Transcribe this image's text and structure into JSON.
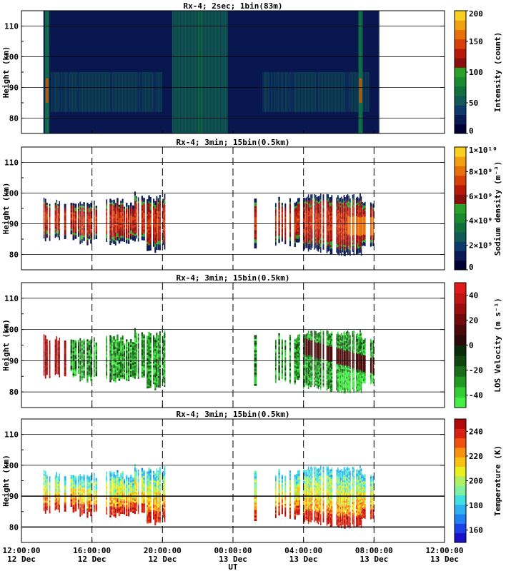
{
  "chart_data": [
    {
      "type": "heatmap",
      "title": "Rx-4;  2sec; 1bin(83m)",
      "ylabel": "Height (km)",
      "ylim": [
        75,
        115
      ],
      "yticks": [
        80,
        90,
        100,
        110
      ],
      "xlim_hours": [
        12,
        36
      ],
      "data_coverage_hours": [
        13.25,
        32.25
      ],
      "colorbar": {
        "label": "Intensity (count)",
        "range": [
          0,
          200
        ],
        "ticks": [
          "0",
          "50",
          "100",
          "150",
          "200"
        ],
        "colors": [
          "#000033",
          "#0a1a55",
          "#0e3a6b",
          "#115a55",
          "#11703c",
          "#1c8a2e",
          "#2aa02a",
          "#8a1010",
          "#b81a0a",
          "#d8400a",
          "#e8700a",
          "#f0a010",
          "#f8d020"
        ]
      },
      "grid": "horizontal"
    },
    {
      "type": "heatmap",
      "title": "Rx-4; 3min; 15bin(0.5km)",
      "ylabel": "Height (km)",
      "ylim": [
        75,
        115
      ],
      "yticks": [
        80,
        90,
        100,
        110
      ],
      "colorbar": {
        "label": "Sodium density (m⁻³)",
        "range": [
          0,
          10000000000
        ],
        "ticks": [
          "0",
          "2×10⁹",
          "4×10⁹",
          "6×10⁹",
          "8×10⁹",
          "1×10¹⁰"
        ],
        "colors": [
          "#000033",
          "#0a1a55",
          "#0e3a6b",
          "#115a55",
          "#11703c",
          "#1c8a2e",
          "#2aa02a",
          "#8a1010",
          "#b81a0a",
          "#d8400a",
          "#e8700a",
          "#f0a010",
          "#f8d020"
        ]
      },
      "grid": "horizontal"
    },
    {
      "type": "heatmap",
      "title": "Rx-4; 3min; 15bin(0.5km)",
      "ylabel": "Height (km)",
      "ylim": [
        75,
        115
      ],
      "yticks": [
        80,
        90,
        100,
        110
      ],
      "colorbar": {
        "label": "LOS Velocity (m s⁻¹)",
        "range": [
          -50,
          50
        ],
        "ticks": [
          "-40",
          "-20",
          "0",
          "20",
          "40"
        ],
        "colors": [
          "#44ee44",
          "#33cc33",
          "#229922",
          "#1a6e1a",
          "#104410",
          "#0a2a0a",
          "#2a0a0a",
          "#4a0a0a",
          "#700a0a",
          "#990f0f",
          "#c01515",
          "#e01a1a"
        ]
      },
      "grid": "horizontal"
    },
    {
      "type": "heatmap",
      "title": "Rx-4; 3min; 15bin(0.5km)",
      "ylabel": "Height (km)",
      "ylim": [
        75,
        115
      ],
      "yticks": [
        80,
        90,
        100,
        110
      ],
      "colorbar": {
        "label": "Temperature (K)",
        "range": [
          150,
          250
        ],
        "ticks": [
          "160",
          "180",
          "200",
          "220",
          "240"
        ],
        "colors": [
          "#1a10c8",
          "#1a40e8",
          "#2080f0",
          "#30b0f0",
          "#40e0e0",
          "#80f0a0",
          "#b0f060",
          "#e8f020",
          "#f8c010",
          "#f89010",
          "#f05010",
          "#d82010",
          "#b00a0a"
        ]
      },
      "grid": "horizontal"
    }
  ],
  "x_axis": {
    "label": "UT",
    "ticks": [
      {
        "time": "12:00:00",
        "date": "12 Dec",
        "hours": 12
      },
      {
        "time": "16:00:00",
        "date": "12 Dec",
        "hours": 16
      },
      {
        "time": "20:00:00",
        "date": "12 Dec",
        "hours": 20
      },
      {
        "time": "00:00:00",
        "date": "13 Dec",
        "hours": 24
      },
      {
        "time": "04:00:00",
        "date": "13 Dec",
        "hours": 28
      },
      {
        "time": "08:00:00",
        "date": "13 Dec",
        "hours": 32
      },
      {
        "time": "12:00:00",
        "date": "13 Dec",
        "hours": 36
      }
    ],
    "dashed_lines_hours": [
      16,
      20,
      24,
      28,
      32
    ]
  }
}
